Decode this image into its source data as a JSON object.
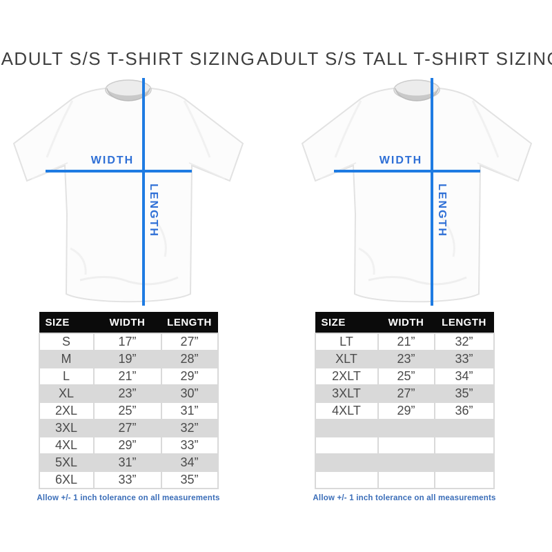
{
  "colors": {
    "line_blue": "#1e7be2",
    "label_blue": "#2e6fd6",
    "footer_blue": "#3a6db8",
    "row_gray": "#d9d9d9",
    "header_bg": "#0b0b0b"
  },
  "panels": [
    {
      "title": "ADULT S/S T-SHIRT SIZING",
      "shirt": {
        "width_label": "WIDTH",
        "length_label": "LENGTH"
      },
      "table": {
        "headers": [
          "SIZE",
          "WIDTH",
          "LENGTH"
        ],
        "rows": [
          [
            "S",
            "17”",
            "27”"
          ],
          [
            "M",
            "19”",
            "28”"
          ],
          [
            "L",
            "21”",
            "29”"
          ],
          [
            "XL",
            "23”",
            "30”"
          ],
          [
            "2XL",
            "25”",
            "31”"
          ],
          [
            "3XL",
            "27”",
            "32”"
          ],
          [
            "4XL",
            "29”",
            "33”"
          ],
          [
            "5XL",
            "31”",
            "34”"
          ],
          [
            "6XL",
            "33”",
            "35”"
          ]
        ]
      },
      "footnote": "Allow +/- 1 inch tolerance on all measurements"
    },
    {
      "title": "ADULT S/S TALL T-SHIRT SIZING",
      "shirt": {
        "width_label": "WIDTH",
        "length_label": "LENGTH"
      },
      "table": {
        "headers": [
          "SIZE",
          "WIDTH",
          "LENGTH"
        ],
        "rows": [
          [
            "LT",
            "21”",
            "32”"
          ],
          [
            "XLT",
            "23”",
            "33”"
          ],
          [
            "2XLT",
            "25”",
            "34”"
          ],
          [
            "3XLT",
            "27”",
            "35”"
          ],
          [
            "4XLT",
            "29”",
            "36”"
          ],
          [
            "",
            "",
            ""
          ],
          [
            "",
            "",
            ""
          ],
          [
            "",
            "",
            ""
          ],
          [
            "",
            "",
            ""
          ]
        ]
      },
      "footnote": "Allow +/- 1 inch tolerance on all measurements"
    }
  ]
}
